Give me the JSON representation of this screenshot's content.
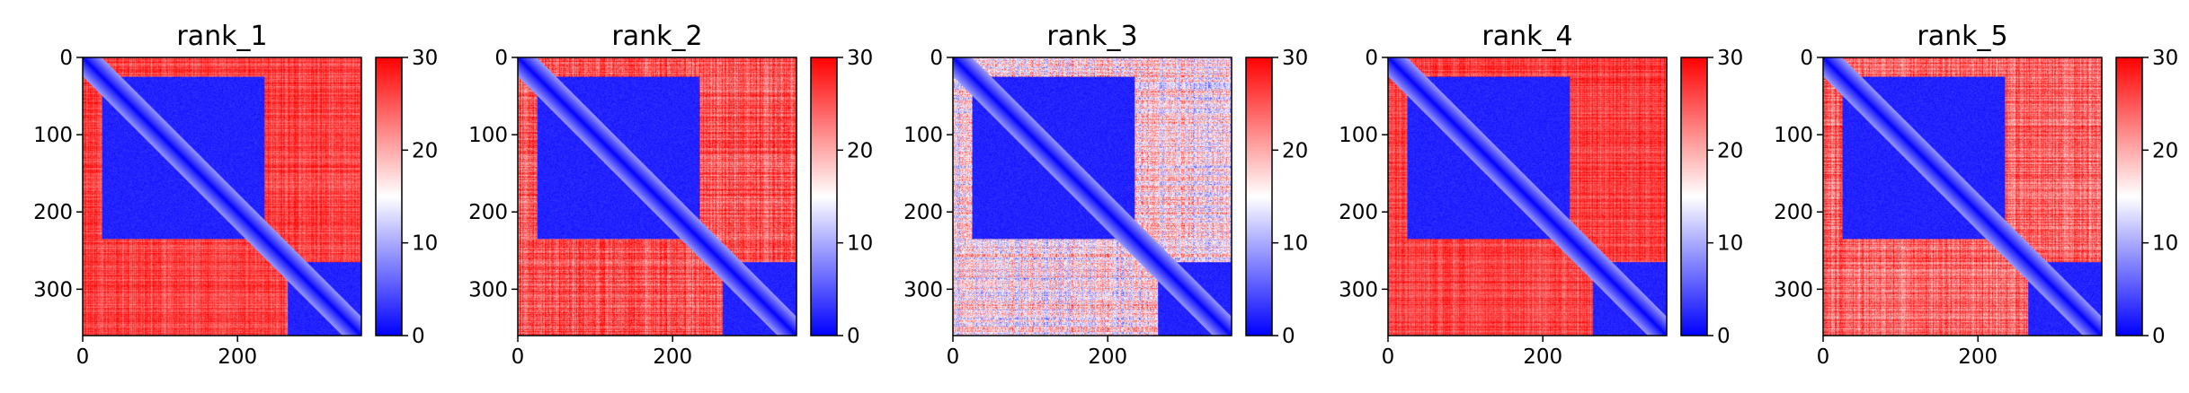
{
  "chart_data": [
    {
      "type": "heatmap",
      "title": "rank_1",
      "n": 360,
      "xticks": [
        0,
        200
      ],
      "yticks": [
        0,
        100,
        200,
        300
      ],
      "colorbar": {
        "ticks": [
          0,
          10,
          20,
          30
        ],
        "range": [
          0,
          30
        ],
        "colors": [
          "#0000ff",
          "#ffffff",
          "#ff0000"
        ]
      },
      "blocks": [
        {
          "from": 25,
          "to": 235,
          "value": 2
        },
        {
          "from": 265,
          "to": 360,
          "value": 2
        }
      ],
      "offblock_value": 26,
      "offblock_variation": "low"
    },
    {
      "type": "heatmap",
      "title": "rank_2",
      "n": 360,
      "xticks": [
        0,
        200
      ],
      "yticks": [
        0,
        100,
        200,
        300
      ],
      "colorbar": {
        "ticks": [
          0,
          10,
          20,
          30
        ],
        "range": [
          0,
          30
        ],
        "colors": [
          "#0000ff",
          "#ffffff",
          "#ff0000"
        ]
      },
      "blocks": [
        {
          "from": 25,
          "to": 235,
          "value": 2
        },
        {
          "from": 265,
          "to": 360,
          "value": 2
        }
      ],
      "offblock_value": 25,
      "offblock_variation": "medium"
    },
    {
      "type": "heatmap",
      "title": "rank_3",
      "n": 360,
      "xticks": [
        0,
        200
      ],
      "yticks": [
        0,
        100,
        200,
        300
      ],
      "colorbar": {
        "ticks": [
          0,
          10,
          20,
          30
        ],
        "range": [
          0,
          30
        ],
        "colors": [
          "#0000ff",
          "#ffffff",
          "#ff0000"
        ]
      },
      "blocks": [
        {
          "from": 25,
          "to": 235,
          "value": 2
        },
        {
          "from": 265,
          "to": 360,
          "value": 2
        }
      ],
      "offblock_value": 16,
      "offblock_variation": "high"
    },
    {
      "type": "heatmap",
      "title": "rank_4",
      "n": 360,
      "xticks": [
        0,
        200
      ],
      "yticks": [
        0,
        100,
        200,
        300
      ],
      "colorbar": {
        "ticks": [
          0,
          10,
          20,
          30
        ],
        "range": [
          0,
          30
        ],
        "colors": [
          "#0000ff",
          "#ffffff",
          "#ff0000"
        ]
      },
      "blocks": [
        {
          "from": 25,
          "to": 235,
          "value": 2
        },
        {
          "from": 265,
          "to": 360,
          "value": 2
        }
      ],
      "offblock_value": 26,
      "offblock_variation": "low"
    },
    {
      "type": "heatmap",
      "title": "rank_5",
      "n": 360,
      "xticks": [
        0,
        200
      ],
      "yticks": [
        0,
        100,
        200,
        300
      ],
      "colorbar": {
        "ticks": [
          0,
          10,
          20,
          30
        ],
        "range": [
          0,
          30
        ],
        "colors": [
          "#0000ff",
          "#ffffff",
          "#ff0000"
        ]
      },
      "blocks": [
        {
          "from": 25,
          "to": 235,
          "value": 2
        },
        {
          "from": 265,
          "to": 360,
          "value": 2
        }
      ],
      "offblock_value": 24,
      "offblock_variation": "medium"
    }
  ]
}
